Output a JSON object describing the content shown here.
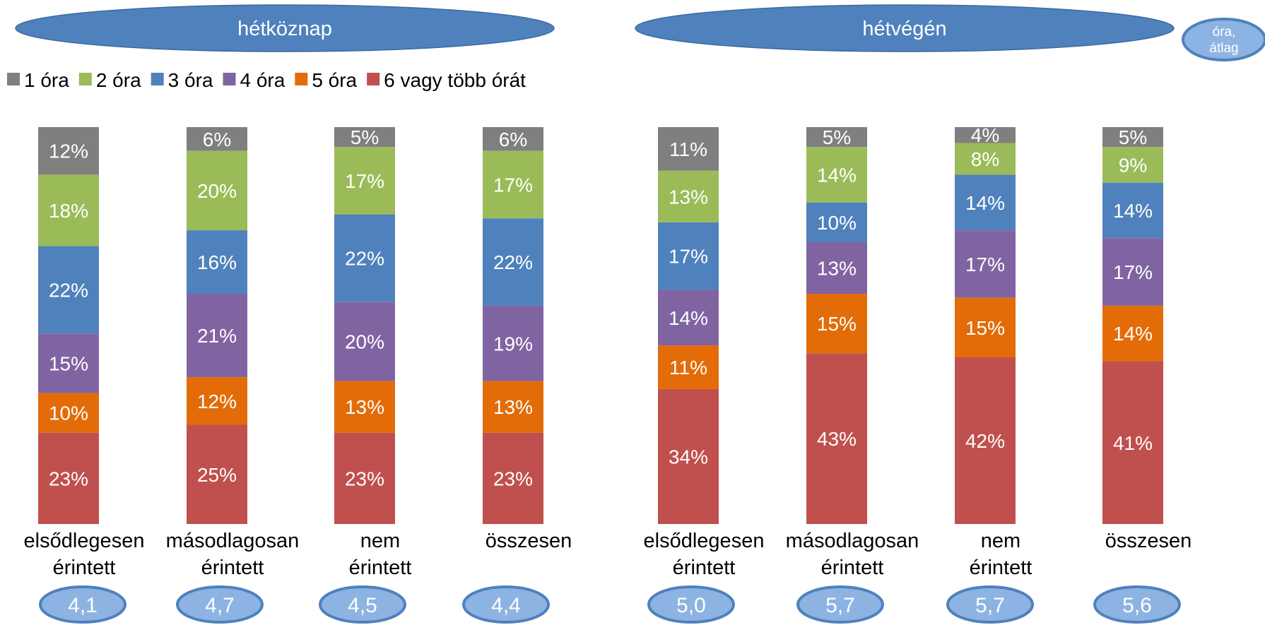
{
  "panels": [
    "hétköznap",
    "hétvégén"
  ],
  "unit_badge": [
    "óra,",
    "átlag"
  ],
  "colors": [
    "#7f7f7f",
    "#9bbb59",
    "#4f81bd",
    "#8064a2",
    "#e36c09",
    "#c0504d"
  ],
  "chart_data": {
    "type": "bar",
    "stacked": true,
    "percent": true,
    "series": [
      {
        "name": "1 óra",
        "values": [
          12,
          6,
          5,
          6,
          11,
          5,
          4,
          5
        ]
      },
      {
        "name": "2 óra",
        "values": [
          18,
          20,
          17,
          17,
          13,
          14,
          8,
          9
        ]
      },
      {
        "name": "3 óra",
        "values": [
          22,
          16,
          22,
          22,
          17,
          10,
          14,
          14
        ]
      },
      {
        "name": "4 óra",
        "values": [
          15,
          21,
          20,
          19,
          14,
          13,
          17,
          17
        ]
      },
      {
        "name": "5 óra",
        "values": [
          10,
          12,
          13,
          13,
          11,
          15,
          15,
          14
        ]
      },
      {
        "name": "6 vagy több órát",
        "values": [
          23,
          25,
          23,
          23,
          34,
          43,
          42,
          41
        ]
      }
    ],
    "categories": [
      [
        "elsődlegesen",
        "érintett"
      ],
      [
        "másodlagosan",
        "érintett"
      ],
      [
        "nem",
        "érintett"
      ],
      [
        "összesen"
      ],
      [
        "elsődlegesen",
        "érintett"
      ],
      [
        "másodlagosan",
        "érintett"
      ],
      [
        "nem",
        "érintett"
      ],
      [
        "összesen"
      ]
    ],
    "averages": [
      "4,1",
      "4,7",
      "4,5",
      "4,4",
      "5,0",
      "5,7",
      "5,7",
      "5,6"
    ],
    "legend_position": "top-left"
  }
}
